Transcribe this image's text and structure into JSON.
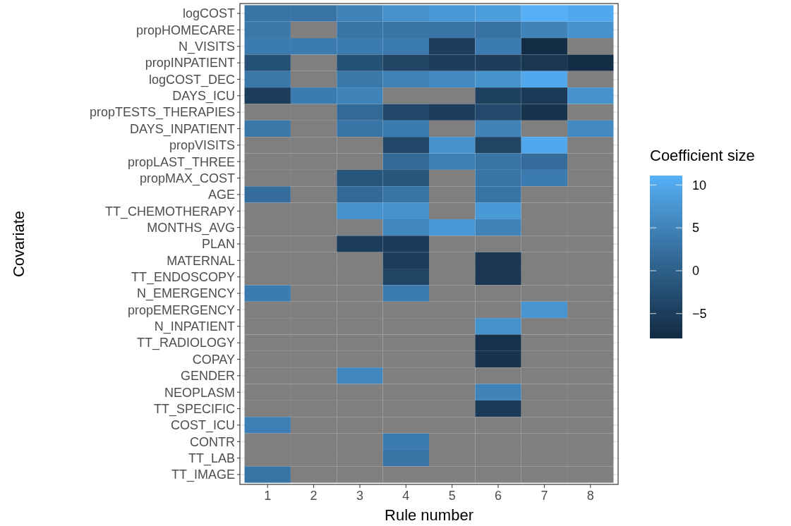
{
  "chart_data": {
    "type": "heatmap",
    "xlabel": "Rule number",
    "ylabel": "Covariate",
    "legend_title": "Coefficient size",
    "categories": [
      "1",
      "2",
      "3",
      "4",
      "5",
      "6",
      "7",
      "8"
    ],
    "y_categories": [
      "logCOST",
      "propHOMECARE",
      "N_VISITS",
      "propINPATIENT",
      "logCOST_DEC",
      "DAYS_ICU",
      "propTESTS_THERAPIES",
      "DAYS_INPATIENT",
      "propVISITS",
      "propLAST_THREE",
      "propMAX_COST",
      "AGE",
      "TT_CHEMOTHERAPY",
      "MONTHS_AVG",
      "PLAN",
      "MATERNAL",
      "TT_ENDOSCOPY",
      "N_EMERGENCY",
      "propEMERGENCY",
      "N_INPATIENT",
      "TT_RADIOLOGY",
      "COPAY",
      "GENDER",
      "NEOPLASM",
      "TT_SPECIFIC",
      "COST_ICU",
      "CONTR",
      "TT_LAB",
      "TT_IMAGE"
    ],
    "cells": [
      [
        3,
        3,
        5,
        7,
        8,
        8.5,
        11,
        10
      ],
      [
        3.5,
        null,
        3,
        3,
        3,
        2.5,
        5,
        7
      ],
      [
        4,
        4,
        4,
        4,
        -5,
        4,
        -7.5,
        null
      ],
      [
        -2,
        null,
        -2,
        -4,
        -5,
        -5,
        -6,
        -7.5
      ],
      [
        3.5,
        null,
        3.5,
        5,
        6,
        7,
        10,
        null
      ],
      [
        -5,
        4,
        5,
        null,
        null,
        -4.5,
        -5.5,
        7
      ],
      [
        null,
        null,
        1.5,
        -3.5,
        -5,
        -3,
        -6.5,
        null
      ],
      [
        3.5,
        null,
        3,
        4,
        null,
        5,
        null,
        6
      ],
      [
        null,
        null,
        null,
        -3.5,
        7,
        -4,
        10,
        null
      ],
      [
        null,
        null,
        null,
        1.5,
        4.5,
        3,
        2,
        null
      ],
      [
        null,
        null,
        -1.5,
        -1.5,
        null,
        3,
        4,
        null
      ],
      [
        2,
        null,
        1.5,
        3,
        null,
        3,
        null,
        null
      ],
      [
        null,
        null,
        7,
        7,
        null,
        8,
        null,
        null
      ],
      [
        null,
        null,
        null,
        5.5,
        8,
        5,
        null,
        null
      ],
      [
        null,
        null,
        -5,
        -5.5,
        null,
        null,
        null,
        null
      ],
      [
        null,
        null,
        null,
        -5,
        null,
        -6,
        null,
        null
      ],
      [
        null,
        null,
        null,
        -4,
        null,
        -6,
        null,
        null
      ],
      [
        4,
        null,
        null,
        4,
        null,
        null,
        null,
        null
      ],
      [
        null,
        null,
        null,
        null,
        null,
        null,
        7.5,
        null
      ],
      [
        null,
        null,
        null,
        null,
        null,
        7,
        null,
        null
      ],
      [
        null,
        null,
        null,
        null,
        null,
        -7,
        null,
        null
      ],
      [
        null,
        null,
        null,
        null,
        null,
        -6.5,
        null,
        null
      ],
      [
        null,
        null,
        5.5,
        null,
        null,
        null,
        null,
        null
      ],
      [
        null,
        null,
        null,
        null,
        null,
        5,
        null,
        null
      ],
      [
        null,
        null,
        null,
        null,
        null,
        -5.5,
        null,
        null
      ],
      [
        4.5,
        null,
        null,
        null,
        null,
        null,
        null,
        null
      ],
      [
        null,
        null,
        null,
        4,
        null,
        null,
        null,
        null
      ],
      [
        null,
        null,
        null,
        3,
        null,
        null,
        null,
        null
      ],
      [
        3,
        null,
        null,
        null,
        null,
        null,
        null,
        null
      ]
    ],
    "clim": [
      -7.9,
      11.1
    ],
    "cticks": [
      {
        "value": -5,
        "label": "−5"
      },
      0,
      5,
      10
    ],
    "grid": "y"
  }
}
